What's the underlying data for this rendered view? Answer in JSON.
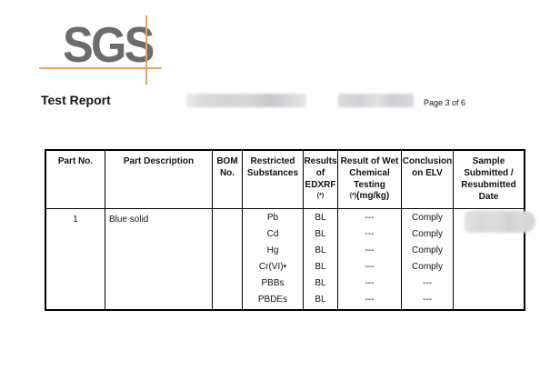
{
  "header": {
    "logo_text": "SGS",
    "title": "Test Report",
    "page_indicator": "Page 3 of 6"
  },
  "colors": {
    "logo_gray": "#6b6c6e",
    "logo_orange": "#e8a468",
    "table_border": "#000000",
    "redaction_gray": "#d6d6d8"
  },
  "table": {
    "headers": {
      "part_no": "Part No.",
      "part_description": "Part Description",
      "bom_no": "BOM\nNo.",
      "restricted_substances": "Restricted\nSubstances",
      "results_edxrf": "Results\nof\nEDXRF",
      "results_edxrf_marker": "(*)",
      "wet_chemical": "Result of Wet\nChemical\nTesting",
      "wet_chemical_marker": "(*)",
      "wet_chemical_unit": "(mg/kg)",
      "conclusion": "Conclusion\non ELV",
      "sample": "Sample\nSubmitted /\nResubmitted\nDate"
    },
    "row": {
      "part_no": "1",
      "part_description": "Blue solid",
      "bom_no": "",
      "lines": [
        {
          "substance": "Pb",
          "edxrf": "BL",
          "wet": "---",
          "conclusion": "Comply"
        },
        {
          "substance": "Cd",
          "edxrf": "BL",
          "wet": "---",
          "conclusion": "Comply"
        },
        {
          "substance": "Hg",
          "edxrf": "BL",
          "wet": "---",
          "conclusion": "Comply"
        },
        {
          "substance": "Cr(VI)",
          "substance_marker": "▾",
          "edxrf": "BL",
          "wet": "---",
          "conclusion": "Comply"
        },
        {
          "substance": "PBBs",
          "edxrf": "BL",
          "wet": "---",
          "conclusion": "---"
        },
        {
          "substance": "PBDEs",
          "edxrf": "BL",
          "wet": "---",
          "conclusion": "---"
        }
      ]
    }
  }
}
